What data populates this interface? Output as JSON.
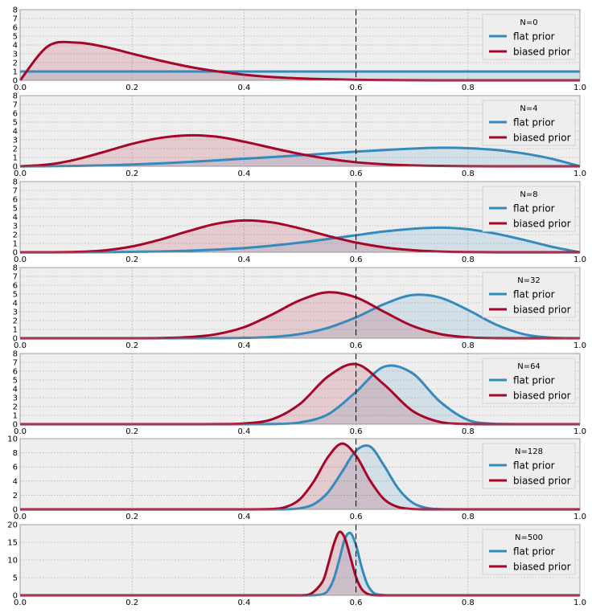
{
  "chart_data": [
    {
      "type": "area",
      "legend_title": "N=0",
      "x": [
        0.0,
        0.05,
        0.1,
        0.15,
        0.2,
        0.25,
        0.3,
        0.35,
        0.4,
        0.45,
        0.5,
        0.55,
        0.6,
        0.65,
        0.7,
        0.75,
        0.8,
        0.85,
        0.9,
        0.95,
        1.0
      ],
      "series": [
        {
          "name": "flat prior",
          "color": "#348abd",
          "values": [
            1,
            1,
            1,
            1,
            1,
            1,
            1,
            1,
            1,
            1,
            1,
            1,
            1,
            1,
            1,
            1,
            1,
            1,
            1,
            1,
            1
          ]
        },
        {
          "name": "biased prior",
          "color": "#a60628",
          "values": [
            0,
            3.87,
            4.27,
            3.8,
            3.02,
            2.24,
            1.56,
            1.03,
            0.64,
            0.38,
            0.22,
            0.12,
            0.06,
            0.03,
            0.01,
            0,
            0,
            0,
            0,
            0,
            0
          ]
        }
      ],
      "xlim": [
        0,
        1
      ],
      "ylim": [
        0,
        8
      ],
      "xticks": [
        "0.0",
        "0.2",
        "0.4",
        "0.6",
        "0.8",
        "1.0"
      ],
      "yticks": [
        "0",
        "1",
        "2",
        "3",
        "4",
        "5",
        "6",
        "7",
        "8"
      ],
      "vline": 0.6,
      "grid": true,
      "legend_position": "top-right"
    },
    {
      "type": "area",
      "legend_title": "N=4",
      "x": [
        0.0,
        0.05,
        0.1,
        0.15,
        0.2,
        0.25,
        0.3,
        0.35,
        0.4,
        0.45,
        0.5,
        0.55,
        0.6,
        0.65,
        0.7,
        0.75,
        0.8,
        0.85,
        0.9,
        0.95,
        1.0
      ],
      "series": [
        {
          "name": "flat prior",
          "color": "#348abd",
          "values": [
            0,
            0.01,
            0.04,
            0.1,
            0.2,
            0.33,
            0.49,
            0.67,
            0.86,
            1.05,
            1.25,
            1.45,
            1.66,
            1.84,
            2.0,
            2.1,
            2.05,
            1.85,
            1.45,
            0.85,
            0
          ]
        },
        {
          "name": "biased prior",
          "color": "#a60628",
          "values": [
            0,
            0.2,
            0.77,
            1.63,
            2.54,
            3.21,
            3.5,
            3.36,
            2.79,
            2.08,
            1.4,
            0.85,
            0.46,
            0.23,
            0.1,
            0.04,
            0.01,
            0,
            0,
            0,
            0
          ]
        }
      ],
      "xlim": [
        0,
        1
      ],
      "ylim": [
        0,
        8
      ],
      "xticks": [
        "0.0",
        "0.2",
        "0.4",
        "0.6",
        "0.8",
        "1.0"
      ],
      "yticks": [
        "0",
        "1",
        "2",
        "3",
        "4",
        "5",
        "6",
        "7",
        "8"
      ],
      "vline": 0.6,
      "grid": true,
      "legend_position": "top-right"
    },
    {
      "type": "area",
      "legend_title": "N=8",
      "x": [
        0.0,
        0.05,
        0.1,
        0.15,
        0.2,
        0.25,
        0.3,
        0.35,
        0.4,
        0.45,
        0.5,
        0.55,
        0.6,
        0.65,
        0.7,
        0.75,
        0.8,
        0.85,
        0.9,
        0.95,
        1.0
      ],
      "series": [
        {
          "name": "flat prior",
          "color": "#348abd",
          "values": [
            0,
            0,
            0,
            0.01,
            0.04,
            0.09,
            0.17,
            0.3,
            0.48,
            0.75,
            1.09,
            1.5,
            1.93,
            2.35,
            2.65,
            2.78,
            2.6,
            2.1,
            1.4,
            0.62,
            0
          ]
        },
        {
          "name": "biased prior",
          "color": "#a60628",
          "values": [
            0,
            0,
            0.04,
            0.21,
            0.66,
            1.43,
            2.38,
            3.22,
            3.6,
            3.38,
            2.7,
            1.85,
            1.1,
            0.56,
            0.24,
            0.08,
            0.02,
            0,
            0,
            0,
            0
          ]
        }
      ],
      "xlim": [
        0,
        1
      ],
      "ylim": [
        0,
        8
      ],
      "xticks": [
        "0.0",
        "0.2",
        "0.4",
        "0.6",
        "0.8",
        "1.0"
      ],
      "yticks": [
        "0",
        "1",
        "2",
        "3",
        "4",
        "5",
        "6",
        "7",
        "8"
      ],
      "vline": 0.6,
      "grid": true,
      "legend_position": "top-right"
    },
    {
      "type": "area",
      "legend_title": "N=32",
      "x": [
        0.0,
        0.05,
        0.1,
        0.15,
        0.2,
        0.25,
        0.3,
        0.35,
        0.4,
        0.45,
        0.5,
        0.55,
        0.6,
        0.65,
        0.7,
        0.75,
        0.8,
        0.85,
        0.9,
        0.95,
        1.0
      ],
      "series": [
        {
          "name": "flat prior",
          "color": "#348abd",
          "values": [
            0,
            0,
            0,
            0,
            0,
            0,
            0,
            0.01,
            0.04,
            0.15,
            0.48,
            1.18,
            2.36,
            3.85,
            4.88,
            4.6,
            3.2,
            1.55,
            0.45,
            0.06,
            0
          ]
        },
        {
          "name": "biased prior",
          "color": "#a60628",
          "values": [
            0,
            0,
            0,
            0,
            0,
            0.02,
            0.12,
            0.45,
            1.25,
            2.68,
            4.3,
            5.2,
            4.62,
            3.0,
            1.42,
            0.48,
            0.1,
            0.01,
            0,
            0,
            0
          ]
        }
      ],
      "xlim": [
        0,
        1
      ],
      "ylim": [
        0,
        8
      ],
      "xticks": [
        "0.0",
        "0.2",
        "0.4",
        "0.6",
        "0.8",
        "1.0"
      ],
      "yticks": [
        "0",
        "1",
        "2",
        "3",
        "4",
        "5",
        "6",
        "7",
        "8"
      ],
      "vline": 0.6,
      "grid": true,
      "legend_position": "top-right"
    },
    {
      "type": "area",
      "legend_title": "N=64",
      "x": [
        0.0,
        0.05,
        0.1,
        0.15,
        0.2,
        0.25,
        0.3,
        0.35,
        0.4,
        0.45,
        0.5,
        0.55,
        0.6,
        0.65,
        0.7,
        0.75,
        0.8,
        0.85,
        0.9,
        0.95,
        1.0
      ],
      "series": [
        {
          "name": "flat prior",
          "color": "#348abd",
          "values": [
            0,
            0,
            0,
            0,
            0,
            0,
            0,
            0,
            0,
            0.02,
            0.2,
            1.12,
            3.65,
            6.5,
            5.8,
            2.55,
            0.48,
            0.03,
            0,
            0,
            0
          ]
        },
        {
          "name": "biased prior",
          "color": "#a60628",
          "values": [
            0,
            0,
            0,
            0,
            0,
            0,
            0,
            0.01,
            0.08,
            0.55,
            2.3,
            5.4,
            6.8,
            4.5,
            1.55,
            0.25,
            0.02,
            0,
            0,
            0,
            0
          ]
        }
      ],
      "xlim": [
        0,
        1
      ],
      "ylim": [
        0,
        8
      ],
      "xticks": [
        "0.0",
        "0.2",
        "0.4",
        "0.6",
        "0.8",
        "1.0"
      ],
      "yticks": [
        "0",
        "1",
        "2",
        "3",
        "4",
        "5",
        "6",
        "7",
        "8"
      ],
      "vline": 0.6,
      "grid": true,
      "legend_position": "top-right"
    },
    {
      "type": "area",
      "legend_title": "N=128",
      "x": [
        0.0,
        0.3,
        0.4,
        0.45,
        0.475,
        0.5,
        0.525,
        0.55,
        0.575,
        0.6,
        0.625,
        0.65,
        0.675,
        0.7,
        0.725,
        0.75,
        0.8,
        1.0
      ],
      "series": [
        {
          "name": "flat prior",
          "color": "#348abd",
          "values": [
            0,
            0,
            0,
            0,
            0.02,
            0.15,
            0.75,
            2.4,
            5.3,
            8.3,
            8.9,
            6.2,
            3.0,
            1.0,
            0.22,
            0.03,
            0,
            0
          ]
        },
        {
          "name": "biased prior",
          "color": "#a60628",
          "values": [
            0,
            0,
            0,
            0.05,
            0.35,
            1.45,
            4.0,
            7.4,
            9.3,
            7.6,
            4.1,
            1.45,
            0.33,
            0.05,
            0,
            0,
            0,
            0
          ]
        }
      ],
      "xlim": [
        0,
        1
      ],
      "ylim": [
        0,
        10
      ],
      "xticks": [
        "0.0",
        "0.2",
        "0.4",
        "0.6",
        "0.8",
        "1.0"
      ],
      "yticks": [
        "0",
        "2",
        "4",
        "6",
        "8",
        "10"
      ],
      "vline": 0.6,
      "grid": true,
      "legend_position": "top-right"
    },
    {
      "type": "area",
      "legend_title": "N=500",
      "x": [
        0.0,
        0.45,
        0.5,
        0.52,
        0.54,
        0.55,
        0.56,
        0.57,
        0.58,
        0.59,
        0.6,
        0.61,
        0.62,
        0.63,
        0.64,
        0.66,
        0.7,
        1.0
      ],
      "series": [
        {
          "name": "flat prior",
          "color": "#348abd",
          "values": [
            0,
            0,
            0,
            0,
            0.3,
            1.4,
            4.5,
            10.0,
            15.9,
            17.6,
            14.2,
            8.0,
            3.2,
            0.9,
            0.2,
            0,
            0,
            0
          ]
        },
        {
          "name": "biased prior",
          "color": "#a60628",
          "values": [
            0,
            0,
            0,
            0.5,
            3.8,
            8.6,
            14.3,
            17.9,
            16.2,
            10.8,
            5.2,
            1.8,
            0.45,
            0.08,
            0,
            0,
            0,
            0
          ]
        }
      ],
      "xlim": [
        0,
        1
      ],
      "ylim": [
        0,
        20
      ],
      "xticks": [
        "0.0",
        "0.2",
        "0.4",
        "0.6",
        "0.8",
        "1.0"
      ],
      "yticks": [
        "0",
        "5",
        "10",
        "15",
        "20"
      ],
      "vline": 0.6,
      "grid": true,
      "legend_position": "top-right"
    }
  ]
}
